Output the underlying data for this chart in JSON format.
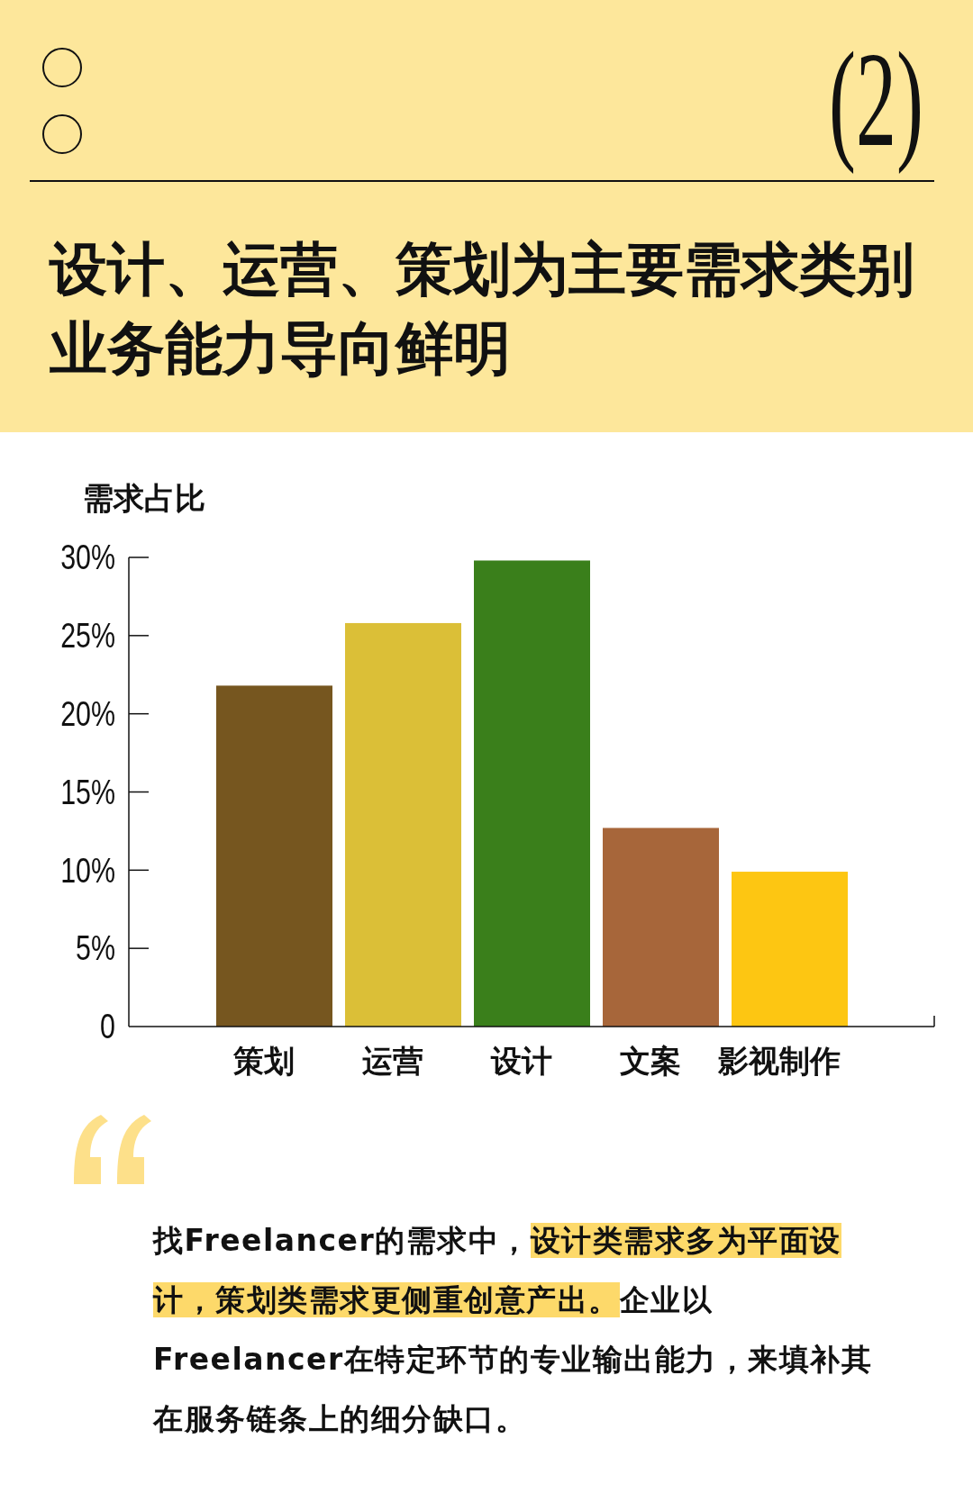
{
  "chart_data": {
    "type": "bar",
    "title": "设计、运营、策划为主要需求类别",
    "subtitle": "业务能力导向鲜明",
    "ylabel": "需求占比",
    "categories": [
      "策划",
      "运营",
      "设计",
      "文案",
      "影视制作"
    ],
    "values": [
      21.8,
      25.8,
      29.8,
      12.7,
      9.9
    ],
    "colors": [
      "#76561f",
      "#dbbf37",
      "#3a7f1b",
      "#a7663a",
      "#fdc612"
    ],
    "ylim": [
      0,
      30
    ],
    "yticks": [
      0,
      {
        "value": 5,
        "label": "5%"
      },
      {
        "value": 10,
        "label": "10%"
      },
      {
        "value": 15,
        "label": "15%"
      },
      {
        "value": 20,
        "label": "20%"
      },
      {
        "value": 25,
        "label": "25%"
      },
      {
        "value": 30,
        "label": "30%"
      }
    ],
    "grid": false,
    "annotations": [
      "(2)",
      "找Freelancer的需求中，",
      "设计类需求多为平面设计，策划类需求更侧重创意产出。",
      "企业以Freelancer在特定环节的专业输出能力，来填补其在服务链条上的细分缺口。"
    ]
  }
}
